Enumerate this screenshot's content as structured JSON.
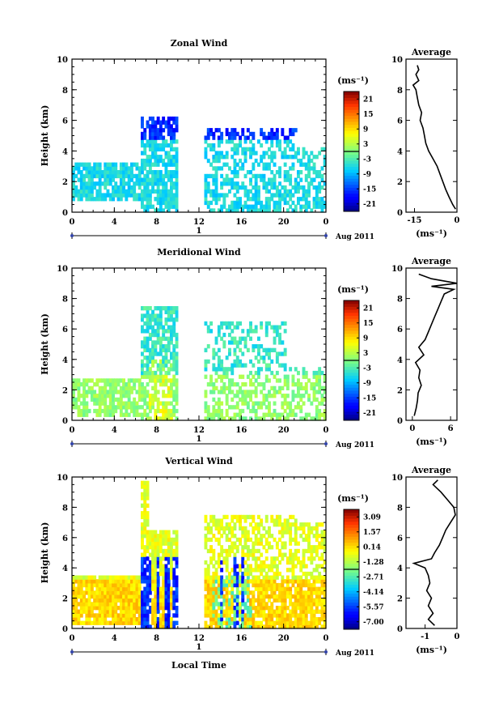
{
  "figure": {
    "xlabel": "Local Time",
    "date_label": "Aug 2011",
    "date_day": "1",
    "ylabel": "Height (km)",
    "unit_label": "(ms⁻¹)",
    "average_title": "Average"
  },
  "chart_data": [
    {
      "type": "heatmap",
      "title": "Zonal Wind",
      "xlabel": "",
      "ylabel": "Height (km)",
      "x_ticks": [
        "0",
        "4",
        "8",
        "12",
        "16",
        "20",
        "0"
      ],
      "xlim": [
        0,
        24
      ],
      "ylim": [
        0,
        10
      ],
      "y_ticks": [
        "0",
        "2",
        "4",
        "6",
        "8",
        "10"
      ],
      "colorbar": {
        "label": "(ms⁻¹)",
        "ticks": [
          "21",
          "15",
          "9",
          "3",
          "-3",
          "-9",
          "-15",
          "-21"
        ],
        "range": [
          -24,
          24
        ]
      },
      "data_gaps_hours": [
        [
          10,
          12
        ]
      ],
      "description_values": {
        "low_level_wind_ms": -6,
        "upper_level_wind_ms": -16
      },
      "profile": {
        "title": "Average",
        "xlabel": "(ms⁻¹)",
        "x_ticks": [
          "-15",
          "0"
        ],
        "xlim": [
          -18,
          0
        ],
        "height_km": [
          0.2,
          0.5,
          1.0,
          1.5,
          2.0,
          2.5,
          3.0,
          3.5,
          4.0,
          4.5,
          5.0,
          5.5,
          6.0,
          6.5,
          7.0,
          7.5,
          8.0,
          8.3,
          8.6,
          9.0,
          9.3,
          9.6
        ],
        "value": [
          -0.5,
          -1.5,
          -2.8,
          -4.0,
          -5.0,
          -6.0,
          -7.0,
          -8.5,
          -10.0,
          -11.0,
          -11.5,
          -12.0,
          -13.0,
          -12.5,
          -13.5,
          -14.0,
          -14.5,
          -15.5,
          -13.5,
          -14.5,
          -13.5,
          -14.0
        ]
      }
    },
    {
      "type": "heatmap",
      "title": "Meridional Wind",
      "xlabel": "",
      "ylabel": "Height (km)",
      "x_ticks": [
        "0",
        "4",
        "8",
        "12",
        "16",
        "20",
        "0"
      ],
      "xlim": [
        0,
        24
      ],
      "ylim": [
        0,
        10
      ],
      "y_ticks": [
        "0",
        "2",
        "4",
        "6",
        "8",
        "10"
      ],
      "colorbar": {
        "label": "(ms⁻¹)",
        "ticks": [
          "21",
          "15",
          "9",
          "3",
          "-3",
          "-9",
          "-15",
          "-21"
        ],
        "range": [
          -24,
          24
        ]
      },
      "data_gaps_hours": [
        [
          10,
          12
        ]
      ],
      "description_values": {
        "low_level_wind_ms": 1,
        "mid_level_wind_ms": -4
      },
      "profile": {
        "title": "Average",
        "xlabel": "(ms⁻¹)",
        "x_ticks": [
          "0",
          "6"
        ],
        "xlim": [
          -1,
          7
        ],
        "height_km": [
          0.3,
          0.8,
          1.3,
          1.8,
          2.3,
          2.8,
          3.3,
          3.8,
          4.3,
          4.8,
          5.3,
          5.8,
          6.3,
          6.8,
          7.3,
          7.8,
          8.3,
          8.6,
          8.8,
          9.0,
          9.3,
          9.6
        ],
        "value": [
          0.3,
          0.6,
          0.8,
          0.9,
          1.4,
          1.0,
          1.2,
          0.5,
          1.8,
          1.0,
          2.0,
          2.5,
          3.0,
          3.5,
          4.0,
          4.5,
          5.0,
          6.5,
          3.0,
          7.0,
          3.0,
          1.0
        ]
      }
    },
    {
      "type": "heatmap",
      "title": "Vertical Wind",
      "xlabel": "Local Time",
      "ylabel": "Height (km)",
      "x_ticks": [
        "0",
        "4",
        "8",
        "12",
        "16",
        "20",
        "0"
      ],
      "xlim": [
        0,
        24
      ],
      "ylim": [
        0,
        10
      ],
      "y_ticks": [
        "0",
        "2",
        "4",
        "6",
        "8",
        "10"
      ],
      "colorbar": {
        "label": "(ms⁻¹)",
        "ticks": [
          "3.09",
          "1.57",
          "0.14",
          "-1.28",
          "-2.71",
          "-4.14",
          "-5.57",
          "-7.00"
        ],
        "range": [
          -7.7,
          3.8
        ]
      },
      "data_gaps_hours": [
        [
          10,
          12
        ]
      ],
      "description_values": {
        "downdraft_ms": -6.5,
        "background_ms": 0.3
      },
      "profile": {
        "title": "Average",
        "xlabel": "(ms⁻¹)",
        "x_ticks": [
          "-1",
          "0"
        ],
        "xlim": [
          -1.6,
          0
        ],
        "height_km": [
          0.2,
          0.6,
          1.0,
          1.5,
          2.0,
          2.5,
          3.0,
          3.5,
          4.0,
          4.3,
          4.6,
          5.0,
          5.5,
          6.0,
          6.5,
          7.0,
          7.5,
          8.0,
          8.5,
          9.0,
          9.5,
          9.8
        ],
        "value": [
          -0.7,
          -0.9,
          -0.75,
          -0.9,
          -0.8,
          -0.95,
          -0.85,
          -0.9,
          -1.0,
          -1.35,
          -0.8,
          -0.7,
          -0.55,
          -0.45,
          -0.35,
          -0.2,
          -0.05,
          -0.1,
          -0.3,
          -0.5,
          -0.75,
          -0.6
        ]
      }
    }
  ]
}
